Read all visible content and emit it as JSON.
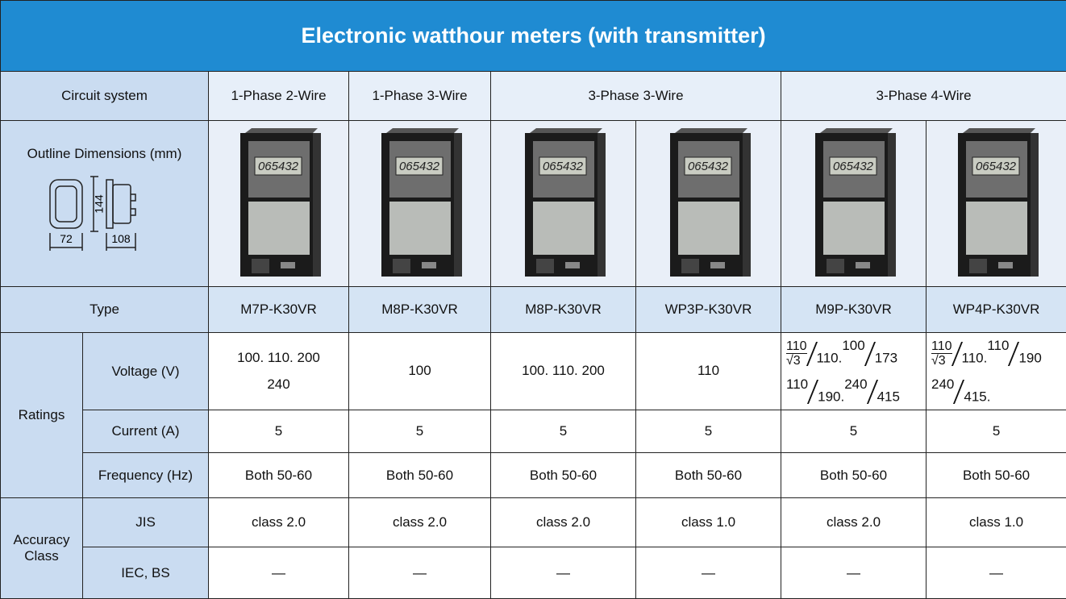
{
  "title": "Electronic watthour meters (with transmitter)",
  "labels": {
    "circuit_system": "Circuit system",
    "outline": "Outline Dimensions (mm)",
    "type": "Type",
    "ratings": "Ratings",
    "voltage": "Voltage (V)",
    "current": "Current (A)",
    "frequency": "Frequency (Hz)",
    "accuracy": "Accuracy Class",
    "jis": "JIS",
    "iec": "IEC, BS"
  },
  "dimensions": {
    "height": "144",
    "width": "72",
    "depth": "108"
  },
  "circuit_systems": [
    {
      "name": "1-Phase 2-Wire",
      "span": 1
    },
    {
      "name": "1-Phase 3-Wire",
      "span": 1
    },
    {
      "name": "3-Phase 3-Wire",
      "span": 2
    },
    {
      "name": "3-Phase 4-Wire",
      "span": 2
    }
  ],
  "meter_display": "065432",
  "models": [
    {
      "type": "M7P-K30VR",
      "voltage": [
        [
          "100. 110. 200"
        ],
        [
          "240"
        ]
      ],
      "current": "5",
      "frequency": "Both 50-60",
      "jis": "class 2.0",
      "iec": "—"
    },
    {
      "type": "M8P-K30VR",
      "voltage": [
        [
          "100"
        ]
      ],
      "current": "5",
      "frequency": "Both 50-60",
      "jis": "class 2.0",
      "iec": "—"
    },
    {
      "type": "M8P-K30VR",
      "voltage": [
        [
          "100. 110. 200"
        ]
      ],
      "current": "5",
      "frequency": "Both 50-60",
      "jis": "class 2.0",
      "iec": "—"
    },
    {
      "type": "WP3P-K30VR",
      "voltage": [
        [
          "110"
        ]
      ],
      "current": "5",
      "frequency": "Both 50-60",
      "jis": "class 1.0",
      "iec": "—"
    },
    {
      "type": "M9P-K30VR",
      "voltage": [
        [
          {
            "num": {
              "num": "110",
              "den": "√3"
            },
            "den": "110."
          },
          {
            "num": "100",
            "den": "173"
          }
        ],
        [
          {
            "num": "110",
            "den": "190."
          },
          {
            "num": "240",
            "den": "415"
          }
        ]
      ],
      "current": "5",
      "frequency": "Both 50-60",
      "jis": "class 2.0",
      "iec": "—"
    },
    {
      "type": "WP4P-K30VR",
      "voltage": [
        [
          {
            "num": {
              "num": "110",
              "den": "√3"
            },
            "den": "110."
          },
          {
            "num": "110",
            "den": "190"
          }
        ],
        [
          {
            "num": "240",
            "den": "415."
          }
        ]
      ],
      "current": "5",
      "frequency": "Both 50-60",
      "jis": "class 1.0",
      "iec": "—"
    }
  ]
}
